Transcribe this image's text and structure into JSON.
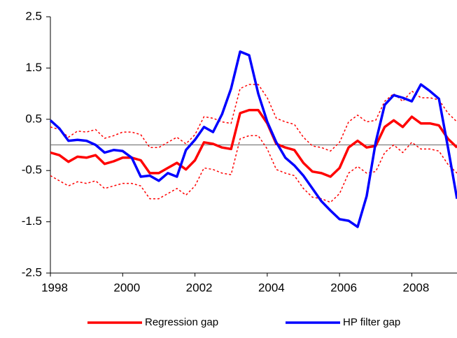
{
  "chart_data": {
    "type": "line",
    "x": [
      1998,
      1998.25,
      1998.5,
      1998.75,
      1999,
      1999.25,
      1999.5,
      1999.75,
      2000,
      2000.25,
      2000.5,
      2000.75,
      2001,
      2001.25,
      2001.5,
      2001.75,
      2002,
      2002.25,
      2002.5,
      2002.75,
      2003,
      2003.25,
      2003.5,
      2003.75,
      2004,
      2004.25,
      2004.5,
      2004.75,
      2005,
      2005.25,
      2005.5,
      2005.75,
      2006,
      2006.25,
      2006.5,
      2006.75,
      2007,
      2007.25,
      2007.5,
      2007.75,
      2008,
      2008.25,
      2008.5,
      2008.75,
      2009,
      2009.25
    ],
    "series": [
      {
        "color": "#ff0000",
        "dashed": true,
        "values": [
          0.35,
          0.3,
          0.15,
          0.27,
          0.25,
          0.3,
          0.13,
          0.18,
          0.25,
          0.25,
          0.2,
          -0.05,
          -0.05,
          0.05,
          0.15,
          0.02,
          0.2,
          0.55,
          0.52,
          0.45,
          0.42,
          1.1,
          1.18,
          1.18,
          0.92,
          0.52,
          0.45,
          0.4,
          0.15,
          -0.02,
          -0.05,
          -0.12,
          0.05,
          0.45,
          0.58,
          0.45,
          0.48,
          0.85,
          1.0,
          0.85,
          1.05,
          0.92,
          0.92,
          0.88,
          0.62,
          0.45
        ]
      },
      {
        "color": "#ff0000",
        "dashed": true,
        "values": [
          -0.6,
          -0.7,
          -0.8,
          -0.72,
          -0.75,
          -0.7,
          -0.85,
          -0.8,
          -0.75,
          -0.75,
          -0.8,
          -1.05,
          -1.05,
          -0.95,
          -0.85,
          -0.98,
          -0.8,
          -0.45,
          -0.48,
          -0.55,
          -0.58,
          0.12,
          0.18,
          0.18,
          -0.08,
          -0.48,
          -0.55,
          -0.6,
          -0.85,
          -1.02,
          -1.05,
          -1.12,
          -0.95,
          -0.55,
          -0.42,
          -0.55,
          -0.52,
          -0.15,
          0.0,
          -0.15,
          0.05,
          -0.08,
          -0.08,
          -0.12,
          -0.38,
          -0.55
        ]
      },
      {
        "name": "Regression gap",
        "color": "#ff0000",
        "values": [
          -0.15,
          -0.2,
          -0.33,
          -0.23,
          -0.25,
          -0.2,
          -0.37,
          -0.32,
          -0.25,
          -0.25,
          -0.3,
          -0.55,
          -0.55,
          -0.45,
          -0.35,
          -0.48,
          -0.3,
          0.05,
          0.02,
          -0.05,
          -0.08,
          0.62,
          0.68,
          0.68,
          0.42,
          0.02,
          -0.05,
          -0.1,
          -0.35,
          -0.52,
          -0.55,
          -0.62,
          -0.45,
          -0.05,
          0.08,
          -0.05,
          -0.02,
          0.35,
          0.48,
          0.35,
          0.55,
          0.42,
          0.42,
          0.38,
          0.12,
          -0.05
        ]
      },
      {
        "name": "HP filter gap",
        "color": "#0000ff",
        "values": [
          0.48,
          0.32,
          0.08,
          0.1,
          0.08,
          0.0,
          -0.15,
          -0.1,
          -0.12,
          -0.25,
          -0.62,
          -0.6,
          -0.7,
          -0.55,
          -0.62,
          -0.1,
          0.1,
          0.35,
          0.25,
          0.6,
          1.1,
          1.82,
          1.75,
          1.0,
          0.45,
          0.05,
          -0.25,
          -0.4,
          -0.6,
          -0.85,
          -1.1,
          -1.28,
          -1.45,
          -1.48,
          -1.6,
          -1.0,
          0.05,
          0.78,
          0.97,
          0.92,
          0.85,
          1.18,
          1.05,
          0.9,
          -0.05,
          -1.05
        ]
      }
    ],
    "xlim": [
      1998,
      2009.25
    ],
    "xticks": [
      1998,
      2000,
      2002,
      2004,
      2006,
      2008
    ],
    "ylim": [
      -2.5,
      2.5
    ],
    "yticks": [
      -2.5,
      -1.5,
      -0.5,
      0.5,
      1.5,
      2.5
    ],
    "zero_line": true
  }
}
